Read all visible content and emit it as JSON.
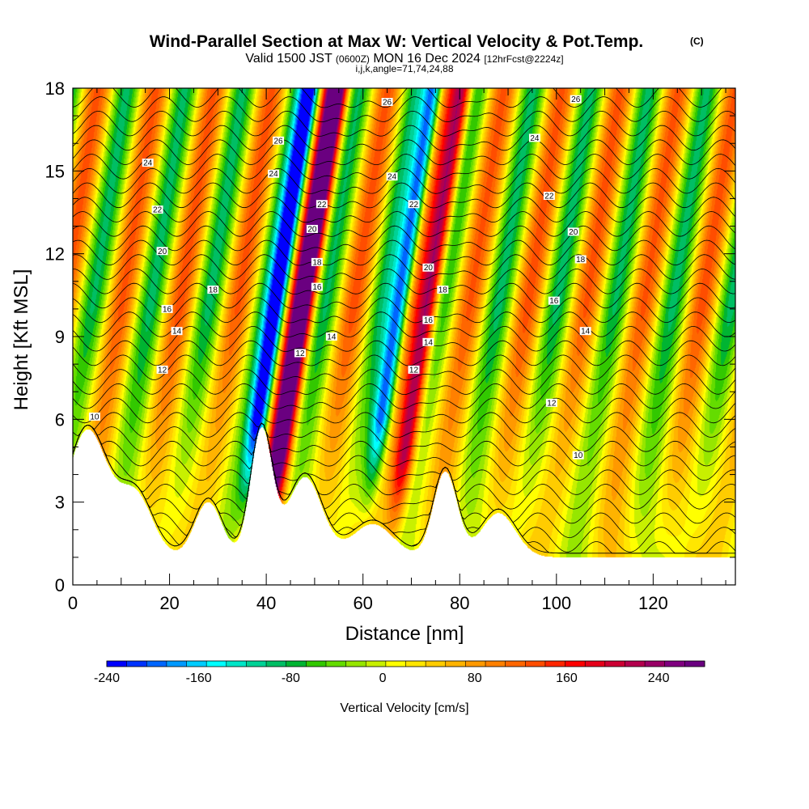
{
  "chart_data": {
    "type": "heatmap",
    "title": "Wind-Parallel Section at Max W: Vertical Velocity & Pot.Temp.",
    "title_mark": "(C)",
    "subtitle_main": "Valid 1500 JST ",
    "subtitle_utc": "(0600Z)",
    "subtitle_date": " MON 16 Dec 2024 ",
    "subtitle_fcst": "[12hrFcst@2224z]",
    "subtitle_indices": "i,j,k,angle=71,74,24,88",
    "xlabel": "Distance [nm]",
    "ylabel": "Height [Kft MSL]",
    "xlim": [
      0,
      137
    ],
    "ylim": [
      0,
      18
    ],
    "x_ticks": [
      "0",
      "20",
      "40",
      "60",
      "80",
      "100",
      "120"
    ],
    "y_ticks": [
      "0",
      "3",
      "6",
      "9",
      "12",
      "15",
      "18"
    ],
    "colorbar": {
      "label": "Vertical Velocity [cm/s]",
      "range": [
        -240,
        280
      ],
      "ticks": [
        "-240",
        "-160",
        "-80",
        "0",
        "80",
        "160",
        "240"
      ],
      "colors": [
        "#0000ff",
        "#0033ff",
        "#0066ff",
        "#0099ff",
        "#00ccff",
        "#00ffff",
        "#00e6c8",
        "#00d296",
        "#00be64",
        "#00b432",
        "#32c800",
        "#64dc00",
        "#96e600",
        "#c8f000",
        "#ffff00",
        "#ffe600",
        "#ffcc00",
        "#ffb300",
        "#ff9900",
        "#ff8000",
        "#ff6600",
        "#ff4d00",
        "#ff2600",
        "#ff0000",
        "#e6001a",
        "#cc0033",
        "#b3004d",
        "#990066",
        "#800080",
        "#6a0080"
      ]
    },
    "contour_labels": [
      {
        "text": "10",
        "x": 4.5,
        "y": 6.1
      },
      {
        "text": "12",
        "x": 18.5,
        "y": 7.8
      },
      {
        "text": "14",
        "x": 21.5,
        "y": 9.2
      },
      {
        "text": "16",
        "x": 19.5,
        "y": 10.0
      },
      {
        "text": "18",
        "x": 29.0,
        "y": 10.7
      },
      {
        "text": "20",
        "x": 18.5,
        "y": 12.1
      },
      {
        "text": "22",
        "x": 17.5,
        "y": 13.6
      },
      {
        "text": "24",
        "x": 15.5,
        "y": 15.3
      },
      {
        "text": "26",
        "x": 42.5,
        "y": 16.1
      },
      {
        "text": "24",
        "x": 41.5,
        "y": 14.9
      },
      {
        "text": "22",
        "x": 51.5,
        "y": 13.8
      },
      {
        "text": "20",
        "x": 49.5,
        "y": 12.9
      },
      {
        "text": "18",
        "x": 50.5,
        "y": 11.7
      },
      {
        "text": "16",
        "x": 50.5,
        "y": 10.8
      },
      {
        "text": "14",
        "x": 53.5,
        "y": 9.0
      },
      {
        "text": "12",
        "x": 47.0,
        "y": 8.4
      },
      {
        "text": "26",
        "x": 65.0,
        "y": 17.5
      },
      {
        "text": "24",
        "x": 66.0,
        "y": 14.8
      },
      {
        "text": "22",
        "x": 70.5,
        "y": 13.8
      },
      {
        "text": "20",
        "x": 73.5,
        "y": 11.5
      },
      {
        "text": "18",
        "x": 76.5,
        "y": 10.7
      },
      {
        "text": "16",
        "x": 73.5,
        "y": 9.6
      },
      {
        "text": "14",
        "x": 73.5,
        "y": 8.8
      },
      {
        "text": "12",
        "x": 70.5,
        "y": 7.8
      },
      {
        "text": "26",
        "x": 104.0,
        "y": 17.6
      },
      {
        "text": "24",
        "x": 95.5,
        "y": 16.2
      },
      {
        "text": "22",
        "x": 98.5,
        "y": 14.1
      },
      {
        "text": "20",
        "x": 103.5,
        "y": 12.8
      },
      {
        "text": "18",
        "x": 105.0,
        "y": 11.8
      },
      {
        "text": "16",
        "x": 99.5,
        "y": 10.3
      },
      {
        "text": "14",
        "x": 106.0,
        "y": 9.2
      },
      {
        "text": "12",
        "x": 99.0,
        "y": 6.6
      },
      {
        "text": "10",
        "x": 104.5,
        "y": 4.7
      }
    ]
  }
}
